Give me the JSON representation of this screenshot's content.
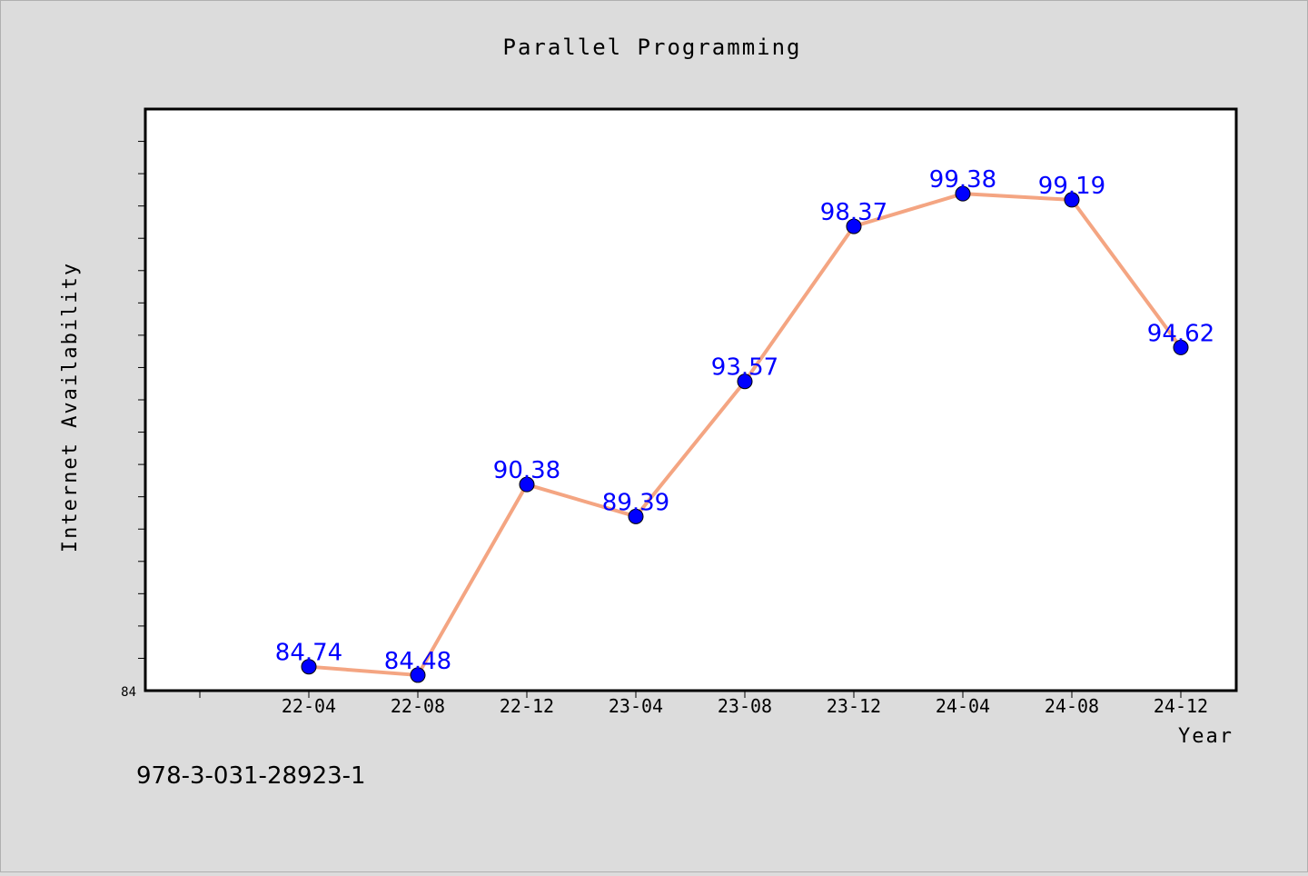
{
  "chart_data": {
    "type": "line",
    "title": "Parallel Programming",
    "xlabel": "Year",
    "ylabel": "Internet Availability",
    "categories": [
      "22-04",
      "22-08",
      "22-12",
      "23-04",
      "23-08",
      "23-12",
      "24-04",
      "24-08",
      "24-12"
    ],
    "values": [
      84.74,
      84.48,
      90.38,
      89.39,
      93.57,
      98.37,
      99.38,
      99.19,
      94.62
    ],
    "value_labels": [
      "84.74",
      "84.48",
      "90.38",
      "89.39",
      "93.57",
      "98.37",
      "99.38",
      "99.19",
      "94.62"
    ],
    "ylim": [
      84,
      102
    ],
    "y_tick_label": "84",
    "grid": false,
    "line_color": "#f4a582",
    "marker_color": "#0000ff",
    "label_color": "#0000ff"
  },
  "footer": {
    "isbn": "978-3-031-28923-1"
  }
}
